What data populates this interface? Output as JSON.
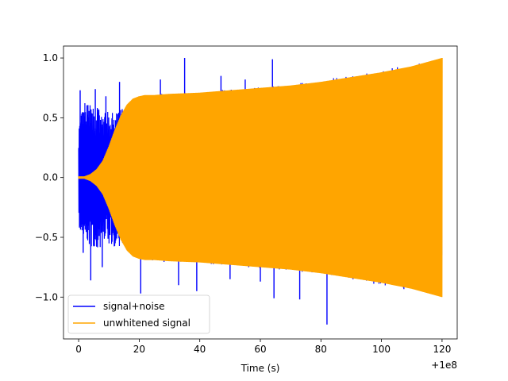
{
  "chart_data": {
    "type": "line",
    "title": "",
    "xlabel": "Time (s)",
    "ylabel": "",
    "x_offset_text": "+1e8",
    "xlim": [
      -5,
      125
    ],
    "ylim": [
      -1.35,
      1.1
    ],
    "x_ticks": [
      0,
      20,
      40,
      60,
      80,
      100,
      120
    ],
    "x_tick_labels": [
      "0",
      "20",
      "40",
      "60",
      "80",
      "100",
      "120"
    ],
    "y_ticks": [
      -1.0,
      -0.5,
      0.0,
      0.5,
      1.0
    ],
    "y_tick_labels": [
      "−1.0",
      "−0.5",
      "0.0",
      "0.5",
      "1.0"
    ],
    "grid": false,
    "legend_position": "lower-left",
    "series": [
      {
        "name": "signal+noise",
        "color": "#0000ff",
        "x_range": [
          0,
          120
        ],
        "envelope": {
          "x": [
            0,
            2,
            4,
            6,
            8,
            10,
            12,
            14,
            16,
            18,
            20,
            25,
            30,
            40,
            50,
            60,
            70,
            80,
            90,
            100,
            110,
            120
          ],
          "upper": [
            0.45,
            0.65,
            0.6,
            0.62,
            0.55,
            0.55,
            0.55,
            0.58,
            0.6,
            0.64,
            0.68,
            0.7,
            0.71,
            0.72,
            0.74,
            0.76,
            0.78,
            0.82,
            0.86,
            0.9,
            0.95,
            1.0
          ],
          "lower": [
            -0.45,
            -0.62,
            -0.6,
            -0.6,
            -0.57,
            -0.57,
            -0.58,
            -0.6,
            -0.62,
            -0.65,
            -0.68,
            -0.7,
            -0.71,
            -0.72,
            -0.74,
            -0.76,
            -0.78,
            -0.82,
            -0.86,
            -0.9,
            -0.95,
            -1.0
          ]
        },
        "spikes": [
          {
            "x": 0.5,
            "y": 0.73
          },
          {
            "x": 1.5,
            "y": -0.63
          },
          {
            "x": 4,
            "y": -0.86
          },
          {
            "x": 5.5,
            "y": 0.74
          },
          {
            "x": 7.8,
            "y": -0.75
          },
          {
            "x": 9,
            "y": 0.68
          },
          {
            "x": 13.5,
            "y": 0.8
          },
          {
            "x": 20.5,
            "y": -0.97
          },
          {
            "x": 27,
            "y": 0.82
          },
          {
            "x": 35,
            "y": 1.0
          },
          {
            "x": 33,
            "y": -0.9
          },
          {
            "x": 39,
            "y": -0.95
          },
          {
            "x": 64,
            "y": 0.99
          },
          {
            "x": 64.5,
            "y": -1.01
          },
          {
            "x": 73,
            "y": -1.02
          },
          {
            "x": 82,
            "y": -1.23
          },
          {
            "x": 55,
            "y": 0.82
          },
          {
            "x": 47,
            "y": 0.85
          },
          {
            "x": 50,
            "y": -0.85
          },
          {
            "x": 60,
            "y": -0.87
          }
        ]
      },
      {
        "name": "unwhitened signal",
        "color": "#ffa500",
        "x_range": [
          0,
          120
        ],
        "envelope": {
          "x": [
            0,
            2,
            4,
            6,
            8,
            10,
            12,
            14,
            16,
            18,
            20,
            22,
            25,
            30,
            40,
            50,
            60,
            70,
            80,
            90,
            100,
            110,
            120
          ],
          "upper": [
            0.01,
            0.01,
            0.03,
            0.07,
            0.14,
            0.26,
            0.4,
            0.52,
            0.61,
            0.66,
            0.68,
            0.69,
            0.69,
            0.7,
            0.71,
            0.73,
            0.75,
            0.77,
            0.8,
            0.84,
            0.88,
            0.93,
            1.0
          ],
          "lower": [
            -0.01,
            -0.01,
            -0.03,
            -0.07,
            -0.14,
            -0.26,
            -0.4,
            -0.52,
            -0.61,
            -0.66,
            -0.68,
            -0.69,
            -0.69,
            -0.7,
            -0.71,
            -0.73,
            -0.75,
            -0.77,
            -0.8,
            -0.84,
            -0.88,
            -0.93,
            -1.0
          ]
        }
      }
    ]
  }
}
